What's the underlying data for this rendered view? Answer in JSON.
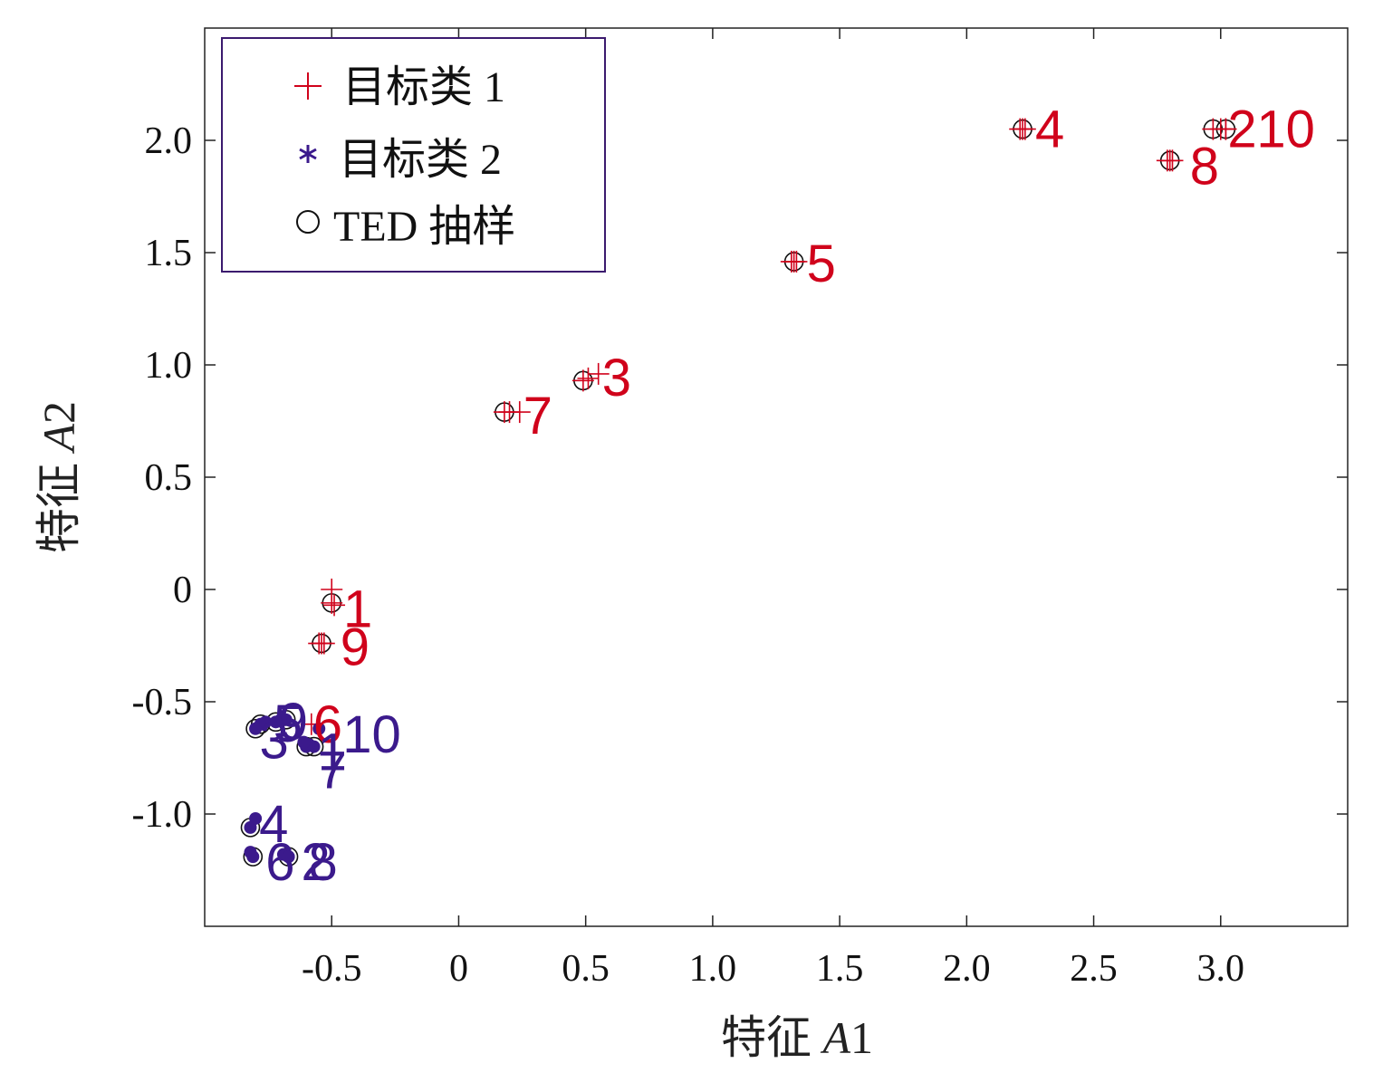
{
  "chart_data": {
    "type": "scatter",
    "xlabel": "特征 A1",
    "ylabel": "特征 A2",
    "xlabel_parts": [
      "特征 ",
      "A",
      "1"
    ],
    "ylabel_parts": [
      "特征 ",
      "A",
      "2"
    ],
    "xlim": [
      -1.0,
      3.5
    ],
    "ylim": [
      -1.5,
      2.5
    ],
    "xticks": [
      -0.5,
      0,
      0.5,
      1.0,
      1.5,
      2.0,
      2.5,
      3.0
    ],
    "xtick_labels": [
      "-0.5",
      "0",
      "0.5",
      "1.0",
      "1.5",
      "2.0",
      "2.5",
      "3.0"
    ],
    "yticks": [
      -1.0,
      -0.5,
      0,
      0.5,
      1.0,
      1.5,
      2.0
    ],
    "ytick_labels": [
      "-1.0",
      "-0.5",
      "0",
      "0.5",
      "1.0",
      "1.5",
      "2.0"
    ],
    "grid": false,
    "legend_position": "top-left",
    "legend": [
      {
        "marker": "+",
        "label": "目标类 1",
        "color": "#d0021b"
      },
      {
        "marker": "*",
        "label": "目标类 2",
        "color": "#3b1a8c"
      },
      {
        "marker": "○",
        "label": "TED 抽样",
        "color": "#111111"
      }
    ],
    "series": [
      {
        "name": "目标类 1",
        "marker": "plus",
        "color": "#d0021b",
        "points": [
          {
            "id": "1",
            "x": -0.5,
            "y": -0.05,
            "samples": [
              [
                -0.5,
                0.0
              ],
              [
                -0.49,
                -0.07
              ],
              [
                -0.5,
                -0.06
              ]
            ]
          },
          {
            "id": "2",
            "x": 3.0,
            "y": 2.05,
            "samples": [
              [
                2.97,
                2.05
              ],
              [
                3.02,
                2.05
              ],
              [
                3.0,
                2.05
              ]
            ]
          },
          {
            "id": "3",
            "x": 0.52,
            "y": 0.95,
            "samples": [
              [
                0.49,
                0.93
              ],
              [
                0.55,
                0.96
              ],
              [
                0.51,
                0.94
              ]
            ]
          },
          {
            "id": "4",
            "x": 2.22,
            "y": 2.05,
            "samples": [
              [
                2.22,
                2.05
              ],
              [
                2.21,
                2.05
              ],
              [
                2.23,
                2.05
              ]
            ]
          },
          {
            "id": "5",
            "x": 1.32,
            "y": 1.46,
            "samples": [
              [
                1.32,
                1.46
              ],
              [
                1.31,
                1.46
              ],
              [
                1.33,
                1.46
              ]
            ]
          },
          {
            "id": "6",
            "x": -0.58,
            "y": -0.6,
            "samples": [
              [
                -0.58,
                -0.6
              ]
            ]
          },
          {
            "id": "7",
            "x": 0.2,
            "y": 0.79,
            "samples": [
              [
                0.18,
                0.79
              ],
              [
                0.24,
                0.79
              ],
              [
                0.2,
                0.79
              ]
            ]
          },
          {
            "id": "8",
            "x": 2.8,
            "y": 1.91,
            "samples": [
              [
                2.8,
                1.91
              ],
              [
                2.79,
                1.91
              ],
              [
                2.81,
                1.91
              ]
            ]
          },
          {
            "id": "9",
            "x": -0.54,
            "y": -0.24,
            "samples": [
              [
                -0.54,
                -0.24
              ],
              [
                -0.55,
                -0.24
              ],
              [
                -0.53,
                -0.24
              ]
            ]
          },
          {
            "id": "10",
            "x": 3.02,
            "y": 2.05,
            "samples": [
              [
                3.02,
                2.05
              ]
            ]
          }
        ]
      },
      {
        "name": "目标类 2",
        "marker": "star",
        "color": "#3b1a8c",
        "points": [
          {
            "id": "1",
            "x": -0.57,
            "y": -0.7,
            "samples": [
              [
                -0.57,
                -0.7
              ],
              [
                -0.59,
                -0.69
              ]
            ]
          },
          {
            "id": "2",
            "x": -0.67,
            "y": -1.19,
            "samples": [
              [
                -0.67,
                -1.19
              ],
              [
                -0.69,
                -1.18
              ]
            ]
          },
          {
            "id": "3",
            "x": -0.78,
            "y": -0.6,
            "samples": [
              [
                -0.78,
                -0.6
              ],
              [
                -0.8,
                -0.62
              ],
              [
                -0.76,
                -0.59
              ]
            ]
          },
          {
            "id": "4",
            "x": -0.82,
            "y": -1.05,
            "samples": [
              [
                -0.82,
                -1.06
              ],
              [
                -0.8,
                -1.02
              ]
            ]
          },
          {
            "id": "5",
            "x": -0.7,
            "y": -0.58,
            "samples": [
              [
                -0.7,
                -0.58
              ],
              [
                -0.72,
                -0.59
              ]
            ]
          },
          {
            "id": "6",
            "x": -0.81,
            "y": -1.19,
            "samples": [
              [
                -0.81,
                -1.19
              ],
              [
                -0.82,
                -1.17
              ]
            ]
          },
          {
            "id": "7",
            "x": -0.6,
            "y": -0.7,
            "samples": [
              [
                -0.6,
                -0.7
              ],
              [
                -0.61,
                -0.68
              ]
            ]
          },
          {
            "id": "8",
            "x": -0.67,
            "y": -1.19,
            "samples": [
              [
                -0.67,
                -1.19
              ]
            ]
          },
          {
            "id": "9",
            "x": -0.68,
            "y": -0.58,
            "samples": [
              [
                -0.68,
                -0.58
              ]
            ]
          },
          {
            "id": "10",
            "x": -0.55,
            "y": -0.62,
            "samples": [
              [
                -0.55,
                -0.62
              ]
            ]
          }
        ]
      }
    ],
    "ted_samples": {
      "name": "TED 抽样",
      "marker": "circle",
      "color": "#111111",
      "points": [
        [
          -0.5,
          -0.06
        ],
        [
          2.97,
          2.05
        ],
        [
          3.02,
          2.05
        ],
        [
          0.49,
          0.93
        ],
        [
          2.22,
          2.05
        ],
        [
          1.32,
          1.46
        ],
        [
          0.18,
          0.79
        ],
        [
          2.8,
          1.91
        ],
        [
          -0.54,
          -0.24
        ],
        [
          -0.8,
          -0.62
        ],
        [
          -0.78,
          -0.6
        ],
        [
          -0.72,
          -0.59
        ],
        [
          -0.68,
          -0.58
        ],
        [
          -0.6,
          -0.7
        ],
        [
          -0.57,
          -0.7
        ],
        [
          -0.82,
          -1.06
        ],
        [
          -0.81,
          -1.19
        ],
        [
          -0.67,
          -1.19
        ]
      ]
    },
    "point_labels": [
      {
        "series": "目标类 1",
        "text": "4",
        "x": 2.22,
        "y": 2.05,
        "dx": 14,
        "dy": 20
      },
      {
        "series": "目标类 1",
        "text": "2",
        "x": 3.02,
        "y": 2.05,
        "dx": 2,
        "dy": 20
      },
      {
        "series": "目标类 1",
        "text": "10",
        "x": 3.02,
        "y": 2.05,
        "dx": 34,
        "dy": 20
      },
      {
        "series": "目标类 1",
        "text": "8",
        "x": 2.8,
        "y": 1.91,
        "dx": 22,
        "dy": 26
      },
      {
        "series": "目标类 1",
        "text": "5",
        "x": 1.32,
        "y": 1.46,
        "dx": 14,
        "dy": 22
      },
      {
        "series": "目标类 1",
        "text": "3",
        "x": 0.55,
        "y": 0.96,
        "dx": 4,
        "dy": 24
      },
      {
        "series": "目标类 1",
        "text": "7",
        "x": 0.24,
        "y": 0.79,
        "dx": 4,
        "dy": 24
      },
      {
        "series": "目标类 1",
        "text": "1",
        "x": -0.49,
        "y": -0.07,
        "dx": 10,
        "dy": 24
      },
      {
        "series": "目标类 1",
        "text": "9",
        "x": -0.53,
        "y": -0.24,
        "dx": 18,
        "dy": 24
      },
      {
        "series": "目标类 1",
        "text": "6",
        "x": -0.58,
        "y": -0.6,
        "dx": 2,
        "dy": 20
      },
      {
        "series": "目标类 2",
        "text": "3",
        "x": -0.72,
        "y": -0.59,
        "dx": -18,
        "dy": 40
      },
      {
        "series": "目标类 2",
        "text": "5",
        "x": -0.68,
        "y": -0.58,
        "dx": -14,
        "dy": 24
      },
      {
        "series": "目标类 2",
        "text": "9",
        "x": -0.68,
        "y": -0.58,
        "dx": -8,
        "dy": 22
      },
      {
        "series": "目标类 2",
        "text": "1",
        "x": -0.57,
        "y": -0.7,
        "dx": 4,
        "dy": 26
      },
      {
        "series": "目标类 2",
        "text": "10",
        "x": -0.55,
        "y": -0.62,
        "dx": 26,
        "dy": 26
      },
      {
        "series": "目标类 2",
        "text": "7",
        "x": -0.57,
        "y": -0.7,
        "dx": 4,
        "dy": 46
      },
      {
        "series": "目标类 2",
        "text": "4",
        "x": -0.8,
        "y": -1.02,
        "dx": 4,
        "dy": 26
      },
      {
        "series": "目标类 2",
        "text": "6",
        "x": -0.81,
        "y": -1.19,
        "dx": 14,
        "dy": 26
      },
      {
        "series": "目标类 2",
        "text": "2",
        "x": -0.67,
        "y": -1.19,
        "dx": 14,
        "dy": 26
      },
      {
        "series": "目标类 2",
        "text": "8",
        "x": -0.67,
        "y": -1.19,
        "dx": 22,
        "dy": 26
      }
    ]
  }
}
